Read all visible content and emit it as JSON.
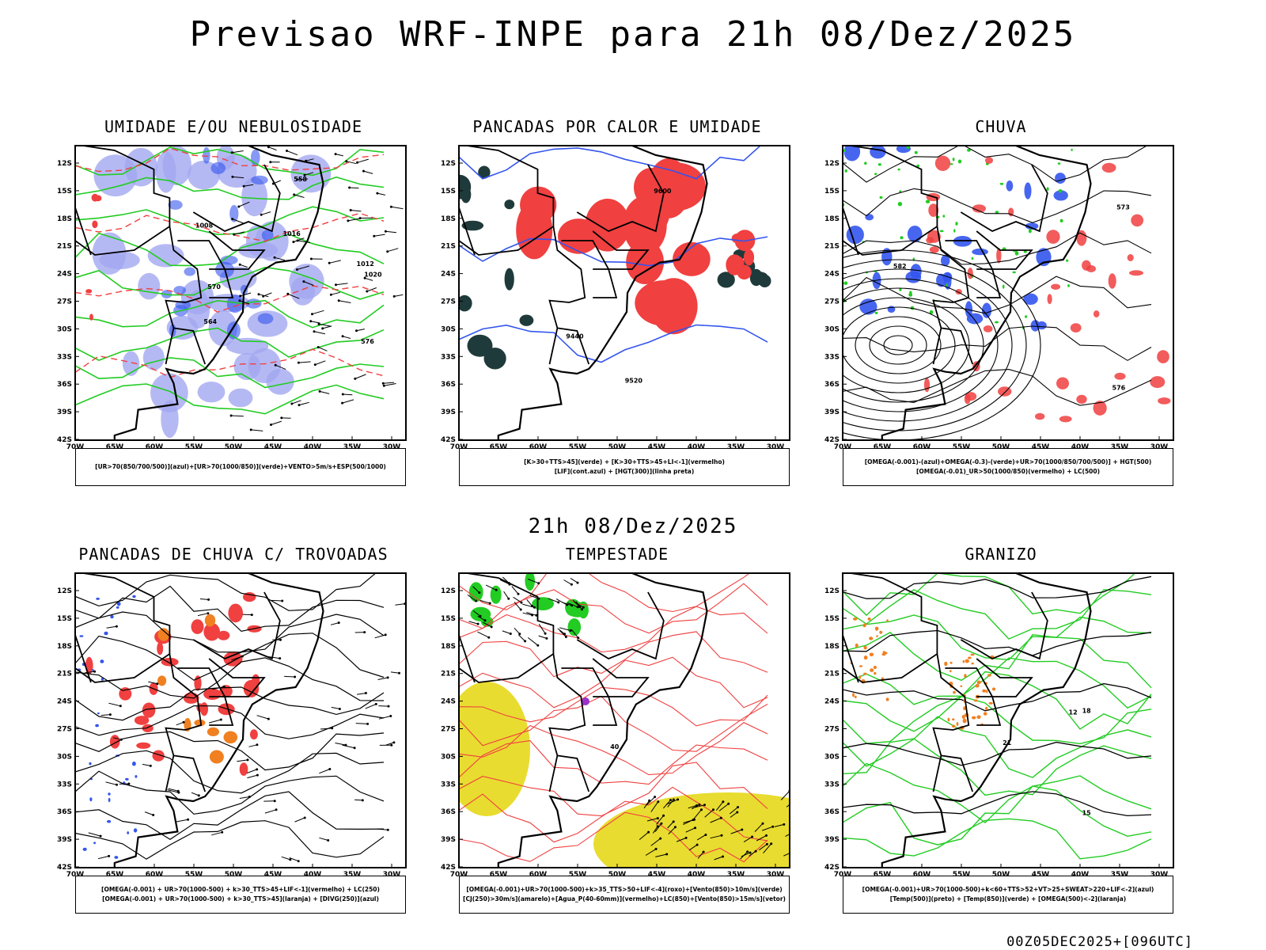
{
  "title": "Previsao WRF-INPE  para 21h 08/Dez/2025",
  "mid_title": "21h 08/Dez/2025",
  "footer": "00Z05DEC2025+[096UTC]",
  "axes": {
    "lat_ticks": [
      "12S",
      "15S",
      "18S",
      "21S",
      "24S",
      "27S",
      "30S",
      "33S",
      "36S",
      "39S",
      "42S"
    ],
    "lon_ticks": [
      "70W",
      "65W",
      "60W",
      "55W",
      "50W",
      "45W",
      "40W",
      "35W",
      "30W"
    ]
  },
  "colors": {
    "blue": "#3355ee",
    "lightblue": "#a3a8f0",
    "green": "#22cc22",
    "red": "#f04040",
    "orange": "#f08020",
    "yellow": "#e8dc30",
    "dark": "#1f3a3a",
    "purple": "#9933cc",
    "black": "#000000"
  },
  "panels": [
    {
      "title": "UMIDADE E/OU NEBULOSIDADE",
      "legend": [
        "[UR>70(850/700/500)](azul)+[UR>70(1000/850)](verde)+VENTO>5m/s+ESP(500/1000)"
      ],
      "labels": [
        "1008",
        "1012",
        "1016",
        "1020",
        "570",
        "576",
        "564",
        "558"
      ]
    },
    {
      "title": "PANCADAS POR CALOR E UMIDADE",
      "legend": [
        "[K>30+TTS>45](verde) + [K>30+TTS>45+LI<-1](vermelho)",
        "[LIF](cont.azul) + [HGT(300)](linha preta)"
      ],
      "labels": [
        "9600",
        "9520",
        "9440"
      ]
    },
    {
      "title": "CHUVA",
      "legend": [
        "[OMEGA(-0.001)-(azul)+OMEGA(-0.3)-(verde)+UR>70(1000/850/700/500)] + HGT(500)",
        "[OMEGA(-0.01)_UR>50(1000/850)(vermelho) + LC(500)"
      ],
      "labels": [
        "576",
        "582",
        "573"
      ]
    },
    {
      "title": "PANCADAS DE CHUVA C/ TROVOADAS",
      "legend": [
        "[OMEGA(-0.001) + UR>70(1000-500) + k>30_TTS>45+LIF<-1](vermelho) + LC(250)",
        "[OMEGA(-0.001) + UR>70(1000-500) + k>30_TTS>45](laranja) + [DIVG(250)](azul)"
      ],
      "labels": []
    },
    {
      "title": "TEMPESTADE",
      "legend": [
        "[OMEGA(-0.001)+UR>70(1000-500)+k>35_TTS>50+LIF<-4](roxo)+[Vento(850)>10m/s](verde)",
        "[CJ(250)>30m/s](amarelo)+[Agua_P(40-60mm)](vermelho)+LC(850)+[Vento(850)>15m/s](vetor)"
      ],
      "labels": [
        "40"
      ]
    },
    {
      "title": "GRANIZO",
      "legend": [
        "[OMEGA(-0.001)+UR>70(1000-500)+k<60+TTS>52+VT>25+SWEAT>220+LIF<-2](azul)",
        "[Temp(500)](preto) + [Temp(850)](verde) + [OMEGA(500)<-2](laranja)"
      ],
      "labels": [
        "12",
        "15",
        "18",
        "21"
      ]
    }
  ]
}
